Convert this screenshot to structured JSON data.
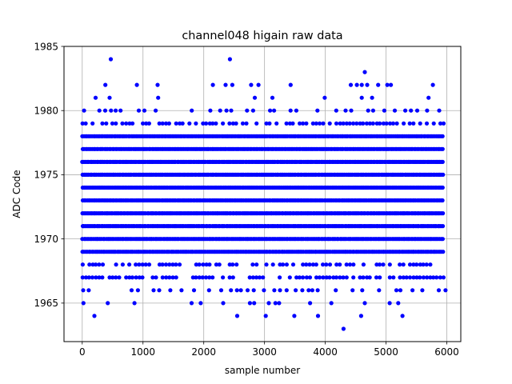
{
  "chart_data": {
    "type": "scatter",
    "title": "channel048 higain raw data",
    "xlabel": "sample number",
    "ylabel": "ADC Code",
    "xlim": [
      -300,
      6230
    ],
    "ylim": [
      1962,
      1985
    ],
    "xticks": [
      0,
      1000,
      2000,
      3000,
      4000,
      5000,
      6000
    ],
    "yticks": [
      1965,
      1970,
      1975,
      1980,
      1985
    ],
    "grid": true,
    "marker_color": "#0000ff",
    "x_range": [
      0,
      5940
    ],
    "series": [
      {
        "dense_levels": [
          1967,
          1968,
          1969,
          1970,
          1971,
          1972,
          1973,
          1974,
          1975,
          1976,
          1977,
          1978,
          1979
        ],
        "moderate_levels": [
          1966,
          1980
        ],
        "sparse_points": [
          [
            470,
            1984
          ],
          [
            2430,
            1984
          ],
          [
            4650,
            1983
          ],
          [
            380,
            1982
          ],
          [
            900,
            1982
          ],
          [
            1240,
            1982
          ],
          [
            2150,
            1982
          ],
          [
            2360,
            1982
          ],
          [
            2470,
            1982
          ],
          [
            2780,
            1982
          ],
          [
            2900,
            1982
          ],
          [
            3430,
            1982
          ],
          [
            4420,
            1982
          ],
          [
            4520,
            1982
          ],
          [
            4600,
            1982
          ],
          [
            4690,
            1982
          ],
          [
            4870,
            1982
          ],
          [
            5020,
            1982
          ],
          [
            5080,
            1982
          ],
          [
            5770,
            1982
          ],
          [
            220,
            1981
          ],
          [
            450,
            1981
          ],
          [
            1250,
            1981
          ],
          [
            2840,
            1981
          ],
          [
            3130,
            1981
          ],
          [
            3990,
            1981
          ],
          [
            4600,
            1981
          ],
          [
            4770,
            1981
          ],
          [
            5700,
            1981
          ],
          [
            20,
            1965
          ],
          [
            420,
            1965
          ],
          [
            860,
            1965
          ],
          [
            1800,
            1965
          ],
          [
            1950,
            1965
          ],
          [
            2320,
            1965
          ],
          [
            2760,
            1965
          ],
          [
            2830,
            1965
          ],
          [
            3070,
            1965
          ],
          [
            3180,
            1965
          ],
          [
            3240,
            1965
          ],
          [
            3750,
            1965
          ],
          [
            4100,
            1965
          ],
          [
            4650,
            1965
          ],
          [
            5060,
            1965
          ],
          [
            5200,
            1965
          ],
          [
            200,
            1964
          ],
          [
            2550,
            1964
          ],
          [
            3020,
            1964
          ],
          [
            3490,
            1964
          ],
          [
            3880,
            1964
          ],
          [
            4590,
            1964
          ],
          [
            5270,
            1964
          ],
          [
            4300,
            1963
          ]
        ]
      }
    ]
  }
}
